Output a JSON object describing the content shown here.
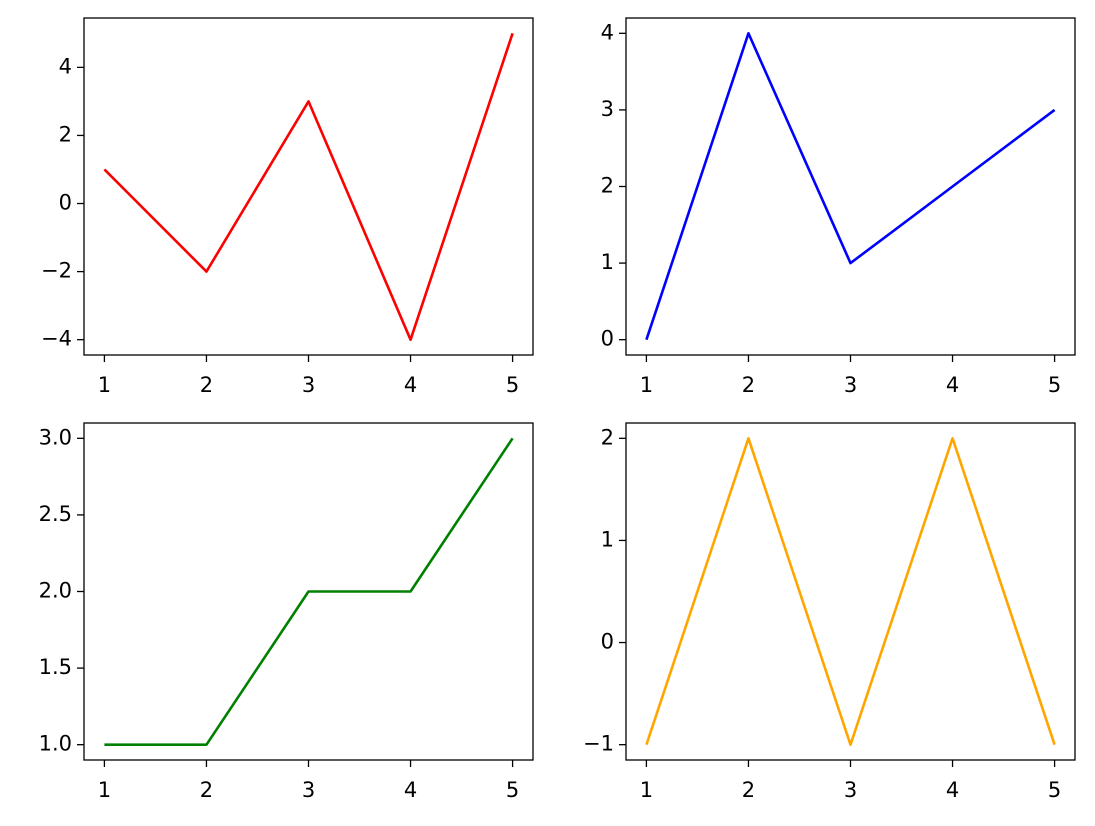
{
  "chart_data": [
    {
      "type": "line",
      "x": [
        1,
        2,
        3,
        4,
        5
      ],
      "series": [
        {
          "color": "#ff0000",
          "values": [
            1,
            -2,
            3,
            -4,
            5
          ]
        }
      ],
      "xlim": [
        0.8,
        5.2
      ],
      "xticks": [
        1,
        2,
        3,
        4,
        5
      ],
      "ylim": [
        -4.45,
        5.45
      ],
      "yticks": [
        {
          "value": -4,
          "label": "−4"
        },
        {
          "value": -2,
          "label": "−2"
        },
        0,
        2,
        4
      ]
    },
    {
      "type": "line",
      "x": [
        1,
        2,
        3,
        4,
        5
      ],
      "series": [
        {
          "color": "#0000ff",
          "values": [
            0,
            4,
            1,
            2,
            3
          ]
        }
      ],
      "xlim": [
        0.8,
        5.2
      ],
      "xticks": [
        1,
        2,
        3,
        4,
        5
      ],
      "ylim": [
        -0.2,
        4.2
      ],
      "yticks": [
        0,
        1,
        2,
        3,
        4
      ]
    },
    {
      "type": "line",
      "x": [
        1,
        2,
        3,
        4,
        5
      ],
      "series": [
        {
          "color": "#008000",
          "values": [
            1,
            1,
            2,
            2,
            3
          ]
        }
      ],
      "xlim": [
        0.8,
        5.2
      ],
      "xticks": [
        1,
        2,
        3,
        4,
        5
      ],
      "ylim": [
        0.9,
        3.1
      ],
      "yticks": [
        {
          "value": 1,
          "label": "1.0"
        },
        1.5,
        {
          "value": 2,
          "label": "2.0"
        },
        2.5,
        {
          "value": 3,
          "label": "3.0"
        }
      ]
    },
    {
      "type": "line",
      "x": [
        1,
        2,
        3,
        4,
        5
      ],
      "series": [
        {
          "color": "#ffa500",
          "values": [
            -1,
            2,
            -1,
            2,
            -1
          ]
        }
      ],
      "xlim": [
        0.8,
        5.2
      ],
      "xticks": [
        1,
        2,
        3,
        4,
        5
      ],
      "ylim": [
        -1.15,
        2.15
      ],
      "yticks": [
        {
          "value": -1,
          "label": "−1"
        },
        0,
        1,
        2
      ]
    }
  ]
}
